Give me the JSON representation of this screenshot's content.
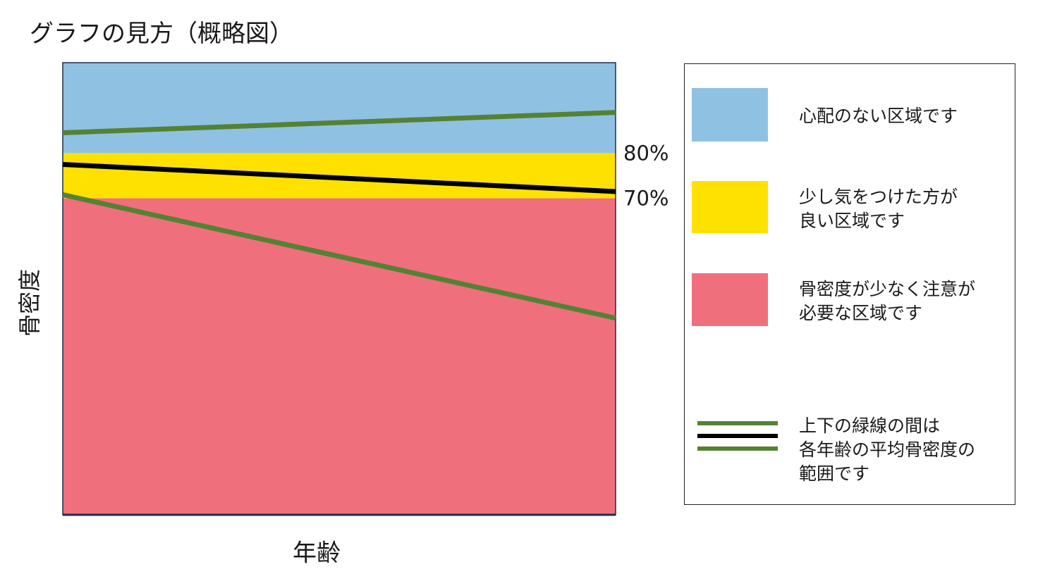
{
  "chart_data": {
    "type": "area",
    "title": "グラフの見方（概略図）",
    "xlabel": "年齢",
    "ylabel": "骨密度",
    "ylim": [
      0,
      100
    ],
    "zones": [
      {
        "name": "心配のない区域です",
        "from": 80,
        "to": 100,
        "color": "#8FC1E3"
      },
      {
        "name": "少し気をつけた方が\n良い区域です",
        "from": 70,
        "to": 80,
        "color": "#FFE100"
      },
      {
        "name": "骨密度が少なく注意が\n必要な区域です",
        "from": 0,
        "to": 70,
        "color": "#F06F7C"
      }
    ],
    "thresholds": [
      {
        "value": 80,
        "label": "80%"
      },
      {
        "value": 70,
        "label": "70%"
      }
    ],
    "x": [
      0,
      1
    ],
    "series": [
      {
        "role": "upper",
        "values": [
          84.5,
          89
        ],
        "color": "#548235"
      },
      {
        "role": "average",
        "values": [
          77.5,
          71.5
        ],
        "color": "#000000"
      },
      {
        "role": "lower",
        "values": [
          70.8,
          43.5
        ],
        "color": "#548235"
      }
    ],
    "line_legend": "上下の緑線の間は\n各年齢の平均骨密度の\n範囲です"
  }
}
